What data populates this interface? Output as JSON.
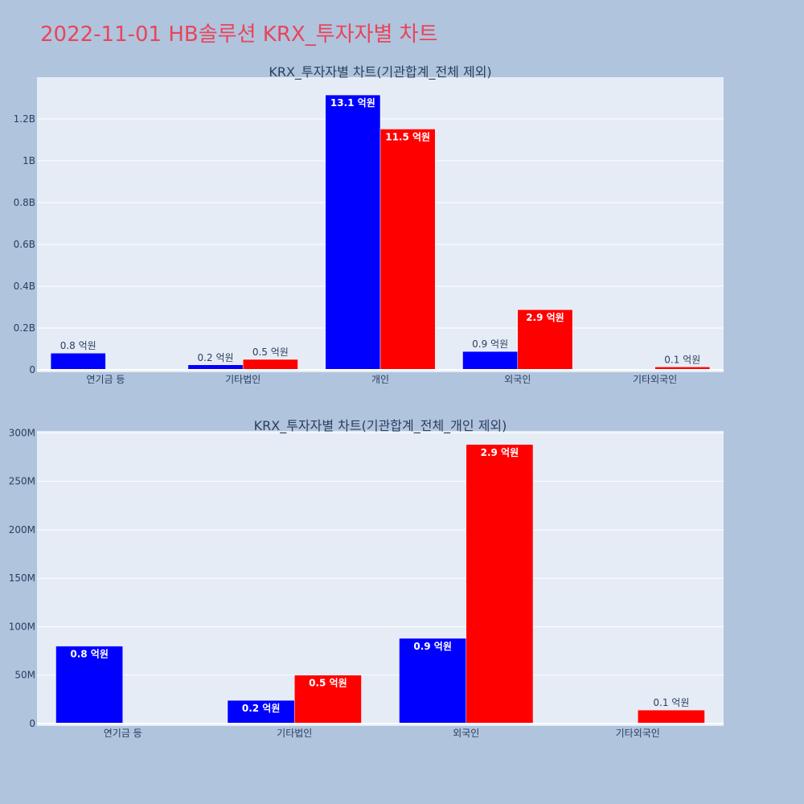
{
  "title": "2022-11-01 HB솔루션 KRX_투자자별 차트",
  "colors": {
    "background": "#b0c4de",
    "plot_bg": "#e5ecf6",
    "series_a": "#0000ff",
    "series_b": "#ff0000",
    "title": "#e8455a"
  },
  "chart_data": [
    {
      "type": "bar",
      "title": "KRX_투자자별 차트(기관합계_전체 제외)",
      "categories": [
        "연기금 등",
        "기타법인",
        "개인",
        "외국인",
        "기타외국인"
      ],
      "ylim": [
        0,
        1400000000
      ],
      "yticks": [
        0,
        200000000,
        400000000,
        600000000,
        800000000,
        1000000000,
        1200000000
      ],
      "ytick_labels": [
        "0",
        "0.2B",
        "0.4B",
        "0.6B",
        "0.8B",
        "1B",
        "1.2B"
      ],
      "grid": true,
      "series": [
        {
          "color": "#0000ff",
          "values": [
            80000000,
            24000000,
            1315000000,
            88000000,
            null
          ],
          "labels": [
            "0.8 억원",
            "0.2 억원",
            "13.1 억원",
            "0.9 억원",
            ""
          ]
        },
        {
          "color": "#ff0000",
          "values": [
            null,
            50000000,
            1152000000,
            288000000,
            14000000
          ],
          "labels": [
            "",
            "0.5 억원",
            "11.5 억원",
            "2.9 억원",
            "0.1 억원"
          ]
        }
      ]
    },
    {
      "type": "bar",
      "title": "KRX_투자자별 차트(기관합계_전체_개인 제외)",
      "categories": [
        "연기금 등",
        "기타법인",
        "외국인",
        "기타외국인"
      ],
      "ylim": [
        0,
        302000000
      ],
      "yticks": [
        0,
        50000000,
        100000000,
        150000000,
        200000000,
        250000000,
        300000000
      ],
      "ytick_labels": [
        "0",
        "50M",
        "100M",
        "150M",
        "200M",
        "250M",
        "300M"
      ],
      "grid": true,
      "series": [
        {
          "color": "#0000ff",
          "values": [
            80000000,
            24000000,
            88000000,
            null
          ],
          "labels": [
            "0.8 억원",
            "0.2 억원",
            "0.9 억원",
            ""
          ]
        },
        {
          "color": "#ff0000",
          "values": [
            null,
            50000000,
            288000000,
            14000000
          ],
          "labels": [
            "",
            "0.5 억원",
            "2.9 억원",
            "0.1 억원"
          ]
        }
      ]
    }
  ]
}
